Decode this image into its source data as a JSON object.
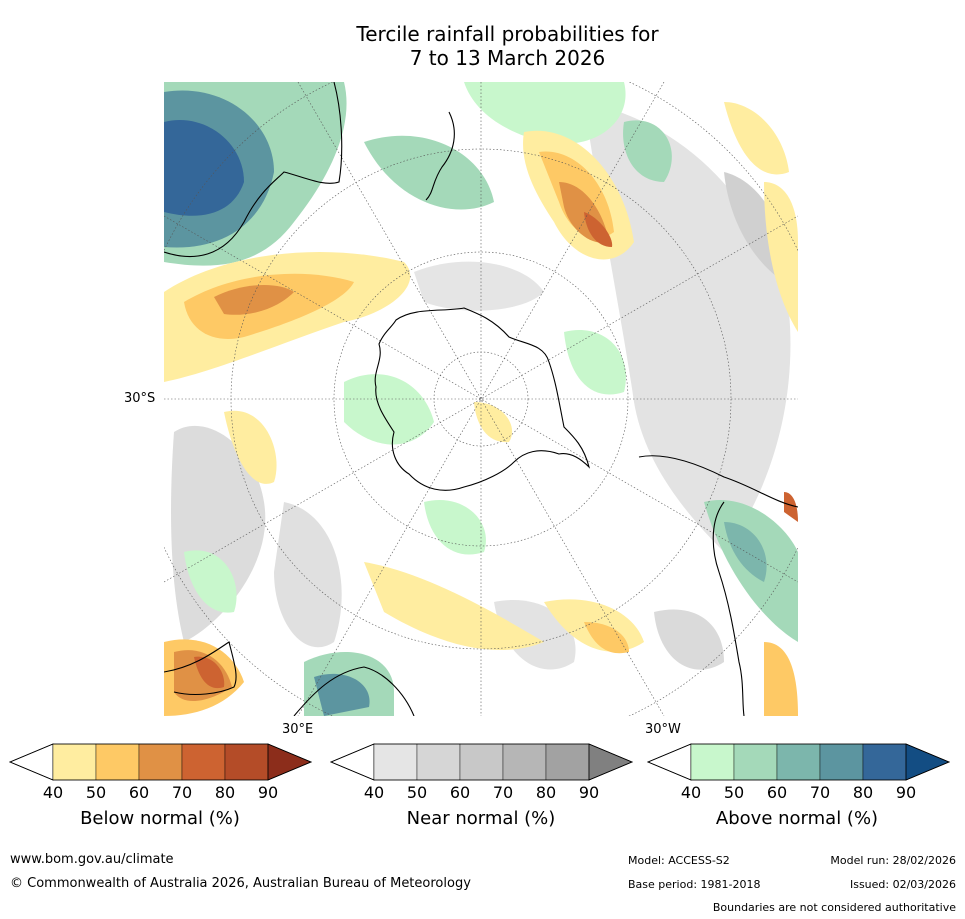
{
  "title_line1": "Tercile rainfall probabilities for",
  "title_line2": "7 to 13 March 2026",
  "map": {
    "lat_label": "30°S",
    "lon_label_east": "30°E",
    "lon_label_west": "30°W"
  },
  "colorbars": [
    {
      "name": "below",
      "label": "Below normal (%)",
      "ticks": [
        "40",
        "50",
        "60",
        "70",
        "80",
        "90"
      ],
      "colors": [
        "#ffeda0",
        "#fec965",
        "#e09145",
        "#cd6331",
        "#b44c28",
        "#8c2d1b"
      ]
    },
    {
      "name": "near",
      "label": "Near normal (%)",
      "ticks": [
        "40",
        "50",
        "60",
        "70",
        "80",
        "90"
      ],
      "colors": [
        "#e5e5e5",
        "#d6d6d6",
        "#c8c8c8",
        "#b6b6b6",
        "#a2a2a2",
        "#808080"
      ]
    },
    {
      "name": "above",
      "label": "Above normal (%)",
      "ticks": [
        "40",
        "50",
        "60",
        "70",
        "80",
        "90"
      ],
      "colors": [
        "#c8f7cc",
        "#a4d9b9",
        "#7cb6ac",
        "#5c95a0",
        "#346799",
        "#134d83"
      ]
    }
  ],
  "footer": {
    "website": "www.bom.gov.au/climate",
    "copyright": "© Commonwealth of Australia 2026, Australian Bureau of Meteorology",
    "model": "Model: ACCESS-S2",
    "model_run": "Model run: 28/02/2026",
    "base_period": "Base period: 1981-2018",
    "issued": "Issued: 02/03/2026",
    "disclaimer": "Boundaries are not considered authoritative"
  }
}
